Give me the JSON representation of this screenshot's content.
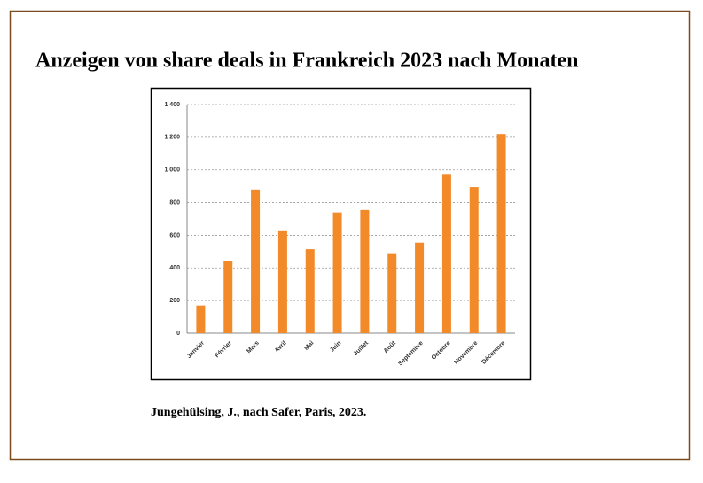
{
  "chart_data": {
    "type": "bar",
    "title": "Anzeigen von share deals in Frankreich 2023 nach Monaten",
    "source": "Jungehülsing, J., nach Safer, Paris, 2023.",
    "categories": [
      "Janvier",
      "Février",
      "Mars",
      "Avril",
      "Mai",
      "Juin",
      "Juillet",
      "Août",
      "Septembre",
      "Octobre",
      "Novembre",
      "Décembre"
    ],
    "values": [
      170,
      440,
      880,
      625,
      515,
      740,
      755,
      485,
      555,
      975,
      895,
      1220
    ],
    "color": "#f28a2a",
    "ylim": [
      0,
      1400
    ],
    "yticks": [
      0,
      200,
      400,
      600,
      800,
      {
        "value": 1000,
        "label": "1 000"
      },
      {
        "value": 1200,
        "label": "1 200"
      },
      {
        "value": 1400,
        "label": "1 400"
      }
    ],
    "grid": true
  }
}
